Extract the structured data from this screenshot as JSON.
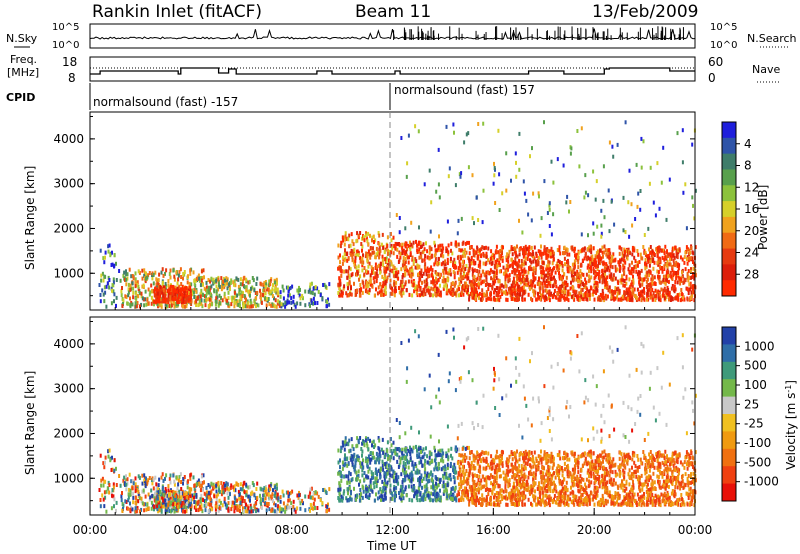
{
  "header": {
    "station": "Rankin Inlet (fitACF)",
    "beam": "Beam 11",
    "date": "13/Feb/2009"
  },
  "summary_panels": {
    "nsky": {
      "label": "N.Sky",
      "ticks": [
        "10^5",
        "10^0"
      ]
    },
    "nsearch": {
      "label": "N.Search",
      "ticks": [
        "10^5",
        "10^0"
      ]
    },
    "freq": {
      "label_line1": "Freq.",
      "label_line2": "[MHz]",
      "ticks": [
        "18",
        "8"
      ]
    },
    "nave": {
      "label": "Nave",
      "ticks": [
        "60",
        "0"
      ]
    },
    "cpid": {
      "label": "CPID",
      "segments": [
        "normalsound (fast) -157",
        "normalsound (fast) 157"
      ]
    }
  },
  "chart_data": [
    {
      "type": "heatmap",
      "name": "power",
      "xlabel": "",
      "ylabel": "Slant Range [km]",
      "xlim": [
        "00:00",
        "24:00"
      ],
      "ylim": [
        180,
        4600
      ],
      "yticks": [
        "1000",
        "2000",
        "3000",
        "4000"
      ],
      "colorbar": {
        "label": "Power [dB]",
        "ticks": [
          "4",
          "8",
          "12",
          "16",
          "20",
          "24",
          "28"
        ],
        "colors": [
          "#1f1fdc",
          "#2f54a8",
          "#3f7d6a",
          "#58a04c",
          "#8cc23c",
          "#d6d02a",
          "#f0a21e",
          "#f06a14",
          "#e63a10",
          "#dc1e0a",
          "#ff2a00"
        ]
      }
    },
    {
      "type": "heatmap",
      "name": "velocity",
      "xlabel": "Time UT",
      "ylabel": "Slant Range [km]",
      "xlim": [
        "00:00",
        "24:00"
      ],
      "ylim": [
        180,
        4600
      ],
      "xticks": [
        "00:00",
        "04:00",
        "08:00",
        "12:00",
        "16:00",
        "20:00",
        "00:00"
      ],
      "yticks": [
        "1000",
        "2000",
        "3000",
        "4000"
      ],
      "colorbar": {
        "label": "Velocity [m s",
        "label_sup": "-1",
        "label_end": "]",
        "ticks": [
          "1000",
          "500",
          "100",
          "25",
          "-25",
          "-100",
          "-500",
          "-1000"
        ],
        "colors": [
          "#2241a8",
          "#2f6ea8",
          "#3f9a7a",
          "#74b84a",
          "#c8c8c8",
          "#f0c020",
          "#f09a10",
          "#f07010",
          "#f04010",
          "#e81008"
        ]
      }
    }
  ],
  "palette": {
    "power_weak": "#2050c0",
    "power_mid": "#60b050",
    "power_strong": "#e83a10",
    "vel_pos": "#3f80a0",
    "vel_zero": "#c8c8c8",
    "vel_neg": "#f08020"
  }
}
